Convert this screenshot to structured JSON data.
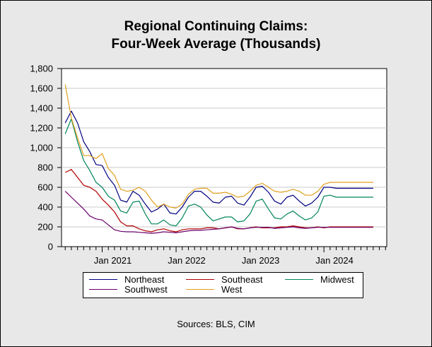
{
  "chart_data": {
    "type": "line",
    "title": [
      "Regional Continuing Claims:",
      "Four-Week Average (Thousands)"
    ],
    "xlabel": "",
    "ylabel": "",
    "ylim": [
      0,
      1800
    ],
    "yticks": [
      0,
      200,
      400,
      600,
      800,
      1000,
      1200,
      1400,
      1600,
      1800
    ],
    "ytick_labels": [
      "0",
      "200",
      "400",
      "600",
      "800",
      "1,000",
      "1,200",
      "1,400",
      "1,600",
      "1,800"
    ],
    "xlim": [
      2020.45,
      2024.85
    ],
    "xtick_labels": [
      {
        "label": "Jan 2021",
        "at": 2021.0
      },
      {
        "label": "Jan 2022",
        "at": 2022.0
      },
      {
        "label": "Jan 2023",
        "at": 2023.0
      },
      {
        "label": "Jan 2024",
        "at": 2024.0
      }
    ],
    "grid": true,
    "legend_position": "bottom",
    "x": [
      2020.5,
      2020.583,
      2020.667,
      2020.75,
      2020.833,
      2020.917,
      2021.0,
      2021.083,
      2021.167,
      2021.25,
      2021.333,
      2021.417,
      2021.5,
      2021.583,
      2021.667,
      2021.75,
      2021.833,
      2021.917,
      2022.0,
      2022.083,
      2022.167,
      2022.25,
      2022.333,
      2022.417,
      2022.5,
      2022.583,
      2022.667,
      2022.75,
      2022.833,
      2022.917,
      2023.0,
      2023.083,
      2023.167,
      2023.25,
      2023.333,
      2023.417,
      2023.5,
      2023.583,
      2023.667,
      2023.75,
      2023.833,
      2023.917,
      2024.0,
      2024.083,
      2024.167,
      2024.25,
      2024.333,
      2024.417,
      2024.5,
      2024.583,
      2024.667
    ],
    "series": [
      {
        "name": "Northeast",
        "color": "#000080",
        "values": [
          1250,
          1370,
          1250,
          1060,
          960,
          830,
          820,
          700,
          620,
          470,
          450,
          560,
          520,
          430,
          350,
          380,
          430,
          340,
          330,
          400,
          500,
          560,
          560,
          510,
          450,
          440,
          500,
          510,
          440,
          420,
          500,
          600,
          610,
          550,
          460,
          430,
          500,
          520,
          460,
          410,
          440,
          500,
          600,
          600,
          590,
          590,
          590,
          590,
          590,
          590,
          590
        ]
      },
      {
        "name": "Southeast",
        "color": "#b00000",
        "values": [
          750,
          780,
          700,
          620,
          600,
          560,
          480,
          420,
          350,
          250,
          210,
          210,
          180,
          160,
          150,
          170,
          180,
          160,
          150,
          170,
          180,
          180,
          180,
          190,
          190,
          180,
          190,
          200,
          180,
          180,
          190,
          200,
          190,
          190,
          190,
          200,
          200,
          210,
          200,
          190,
          190,
          200,
          190,
          200,
          200,
          200,
          200,
          200,
          200,
          200,
          200
        ]
      },
      {
        "name": "Midwest",
        "color": "#00845a",
        "values": [
          1140,
          1290,
          1060,
          870,
          770,
          650,
          600,
          510,
          470,
          360,
          340,
          450,
          460,
          330,
          230,
          230,
          270,
          220,
          210,
          290,
          410,
          430,
          400,
          320,
          260,
          280,
          300,
          300,
          250,
          260,
          330,
          460,
          480,
          380,
          290,
          280,
          330,
          360,
          310,
          270,
          290,
          350,
          510,
          520,
          500,
          500,
          500,
          500,
          500,
          500,
          500
        ]
      },
      {
        "name": "Southwest",
        "color": "#6a006a",
        "values": [
          560,
          500,
          440,
          380,
          310,
          280,
          270,
          220,
          170,
          155,
          150,
          150,
          145,
          140,
          135,
          140,
          150,
          145,
          140,
          150,
          160,
          165,
          165,
          170,
          175,
          180,
          190,
          200,
          185,
          180,
          190,
          195,
          195,
          195,
          185,
          190,
          195,
          200,
          190,
          185,
          190,
          195,
          195,
          195,
          195,
          195,
          195,
          195,
          195,
          195,
          195
        ]
      },
      {
        "name": "West",
        "color": "#e0a020",
        "values": [
          1640,
          1300,
          1100,
          920,
          920,
          890,
          940,
          790,
          720,
          580,
          560,
          570,
          600,
          560,
          470,
          400,
          430,
          400,
          390,
          430,
          530,
          580,
          590,
          590,
          540,
          540,
          550,
          530,
          500,
          510,
          560,
          620,
          640,
          600,
          560,
          550,
          560,
          580,
          560,
          520,
          520,
          560,
          630,
          650,
          650,
          650,
          650,
          650,
          650,
          650,
          650
        ]
      }
    ]
  },
  "source": "Sources: BLS, CIM"
}
